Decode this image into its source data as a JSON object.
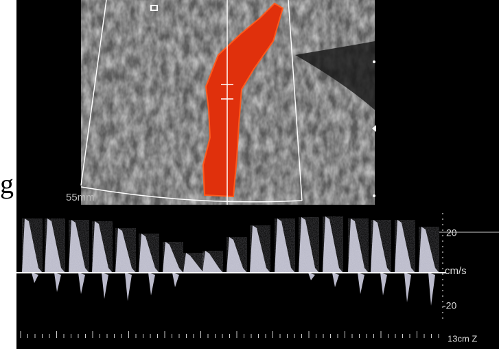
{
  "image": {
    "side_label": "g",
    "depth_label": "55mm",
    "scale_top": "20",
    "scale_unit": "cm/s",
    "scale_bottom": "-20",
    "probe_label": "13cm Z"
  }
}
